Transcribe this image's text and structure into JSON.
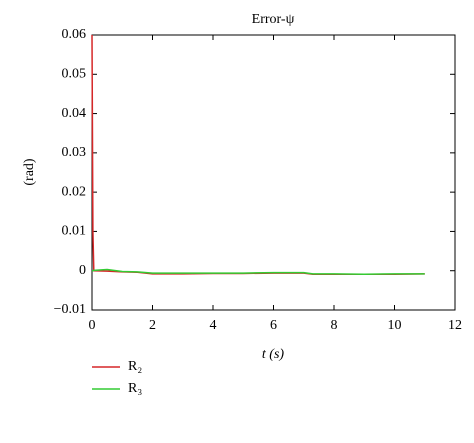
{
  "chart_data": {
    "type": "line",
    "title": "Error-ψ",
    "x_label": "t (s)",
    "y_label": "(rad)",
    "x": [
      0,
      0.03,
      0.06,
      0.5,
      1,
      1.5,
      2,
      3,
      4,
      5,
      6,
      7,
      7.3,
      8,
      9,
      10,
      11
    ],
    "series": [
      {
        "name": "R₂",
        "color": "#d62728",
        "values": [
          0.06,
          0.01,
          0,
          -0.0001,
          -0.0003,
          -0.0004,
          -0.0008,
          -0.0008,
          -0.0007,
          -0.0007,
          -0.0006,
          -0.0006,
          -0.0009,
          -0.0009,
          -0.0009,
          -0.0009,
          -0.0008
        ]
      },
      {
        "name": "R₃",
        "color": "#33cc33",
        "values": [
          0,
          0,
          0.0001,
          0.0003,
          -0.0002,
          -0.0003,
          -0.0006,
          -0.0006,
          -0.0006,
          -0.0006,
          -0.0005,
          -0.0005,
          -0.0008,
          -0.0008,
          -0.0009,
          -0.0008,
          -0.0008
        ]
      }
    ],
    "xlim": [
      0,
      12
    ],
    "xticks": [
      0,
      2,
      4,
      6,
      8,
      10,
      12
    ],
    "ylim": [
      -0.01,
      0.06
    ],
    "yticks": [
      {
        "value": -0.01,
        "label": "−0.01"
      },
      0,
      0.01,
      0.02,
      0.03,
      0.04,
      0.05,
      0.06
    ],
    "grid": false,
    "legend": "below"
  }
}
